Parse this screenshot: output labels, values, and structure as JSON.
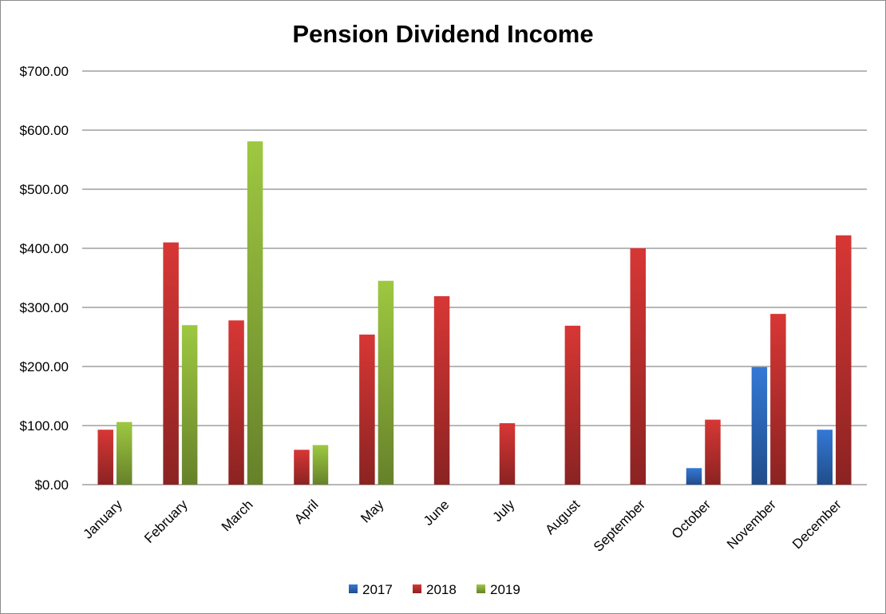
{
  "chart_data": {
    "type": "bar",
    "title": "Pension Dividend Income",
    "xlabel": "",
    "ylabel": "",
    "categories": [
      "January",
      "February",
      "March",
      "April",
      "May",
      "June",
      "July",
      "August",
      "September",
      "October",
      "November",
      "December"
    ],
    "series": [
      {
        "name": "2017",
        "color": "#2e6bbf",
        "values": [
          null,
          null,
          null,
          null,
          null,
          null,
          null,
          null,
          null,
          28,
          199,
          93
        ]
      },
      {
        "name": "2018",
        "color": "#c0312f",
        "values": [
          93,
          410,
          278,
          59,
          254,
          319,
          104,
          269,
          400,
          110,
          289,
          422
        ]
      },
      {
        "name": "2019",
        "color": "#8db33a",
        "values": [
          106,
          270,
          581,
          67,
          345,
          null,
          null,
          null,
          null,
          null,
          null,
          null
        ]
      }
    ],
    "ylim": [
      0,
      700
    ],
    "ytick_labels": [
      "$0.00",
      "$100.00",
      "$200.00",
      "$300.00",
      "$400.00",
      "$500.00",
      "$600.00",
      "$700.00"
    ],
    "grid": true,
    "legend_position": "bottom"
  }
}
